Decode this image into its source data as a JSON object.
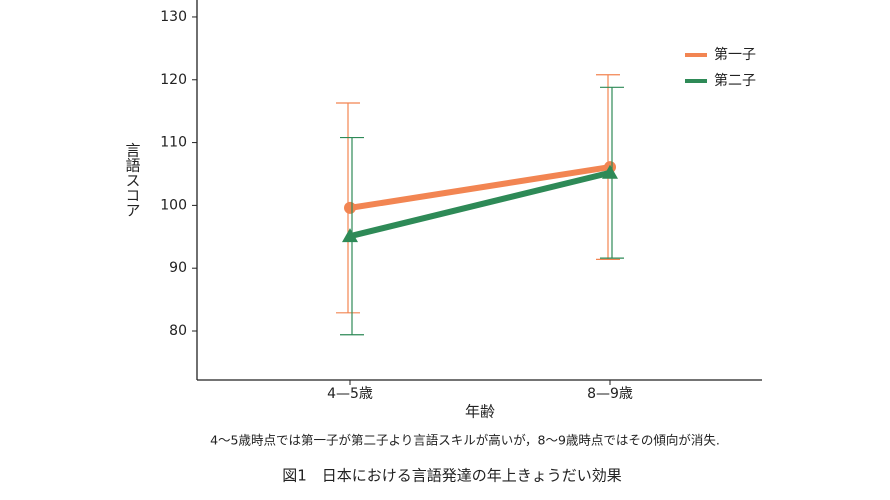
{
  "chart_data": {
    "type": "line",
    "categories": [
      "4—5歳",
      "8—9歳"
    ],
    "x_label": "年齢",
    "y_label": "言語スコア",
    "note": "4〜5歳時点では第一子が第二子より言語スキルが高いが，8〜9歳時点ではその傾向が消失.",
    "caption": "図1　日本における言語発達の年上きょうだい効果",
    "series": [
      {
        "name": "第一子",
        "color": "#f28552",
        "marker": "circle",
        "values": [
          99.6,
          106.1
        ],
        "errors": [
          16.7,
          14.7
        ]
      },
      {
        "name": "第二子",
        "color": "#2e8a57",
        "marker": "triangle",
        "values": [
          95.1,
          105.2
        ],
        "errors": [
          15.7,
          13.6
        ]
      }
    ],
    "ylim": [
      72.2,
      132.7
    ],
    "yticks": [
      80,
      90,
      100,
      110,
      120,
      130
    ],
    "grid": false,
    "legend": "upper right"
  }
}
